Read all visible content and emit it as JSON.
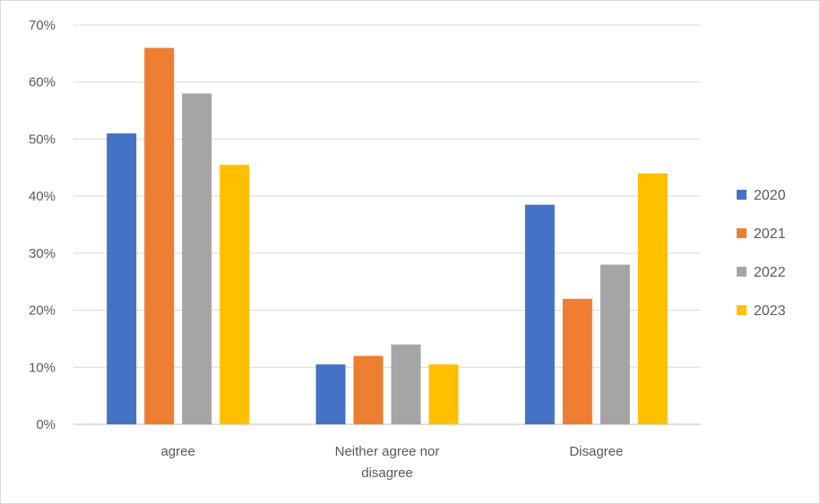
{
  "chart_data": {
    "type": "bar",
    "title": "",
    "xlabel": "",
    "ylabel": "",
    "categories": [
      "agree",
      "Neither agree nor disagree",
      "Disagree"
    ],
    "category_lines": [
      [
        "agree"
      ],
      [
        "Neither agree nor",
        "disagree"
      ],
      [
        "Disagree"
      ]
    ],
    "series": [
      {
        "name": "2020",
        "color": "#4472C4",
        "values": [
          0.51,
          0.105,
          0.385
        ]
      },
      {
        "name": "2021",
        "color": "#ED7D31",
        "values": [
          0.66,
          0.12,
          0.22
        ]
      },
      {
        "name": "2022",
        "color": "#A5A5A5",
        "values": [
          0.58,
          0.14,
          0.28
        ]
      },
      {
        "name": "2023",
        "color": "#FFC000",
        "values": [
          0.455,
          0.105,
          0.44
        ]
      }
    ],
    "ylim": [
      0,
      0.7
    ],
    "yticks": [
      0,
      0.1,
      0.2,
      0.3,
      0.4,
      0.5,
      0.6,
      0.7
    ],
    "ytick_labels": [
      "0%",
      "10%",
      "20%",
      "30%",
      "40%",
      "50%",
      "60%",
      "70%"
    ],
    "grid": true,
    "legend_position": "right"
  }
}
